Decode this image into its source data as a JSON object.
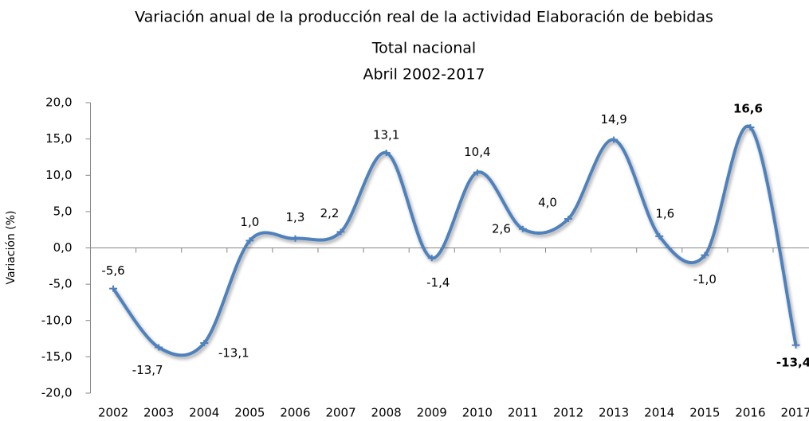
{
  "chart_data": {
    "type": "line",
    "title": "Variación anual de la producción real de la actividad Elaboración de bebidas",
    "subtitle": [
      "Total nacional",
      "Abril 2002-2017"
    ],
    "y_label": "Variación (%)",
    "categories": [
      "2002",
      "2003",
      "2004",
      "2005",
      "2006",
      "2007",
      "2008",
      "2009",
      "2010",
      "2011",
      "2012",
      "2013",
      "2014",
      "2015",
      "2016",
      "2017"
    ],
    "values": [
      -5.6,
      -13.7,
      -13.1,
      1.0,
      1.3,
      2.2,
      13.1,
      -1.4,
      10.4,
      2.6,
      4.0,
      14.9,
      1.6,
      -1.0,
      16.6,
      -13.4
    ],
    "value_labels": [
      "-5,6",
      "-13,7",
      "-13,1",
      "1,0",
      "1,3",
      "2,2",
      "13,1",
      "-1,4",
      "10,4",
      "2,6",
      "4,0",
      "14,9",
      "1,6",
      "-1,0",
      "16,6",
      "-13,4"
    ],
    "color": "#4f81bd",
    "ylim": [
      -20,
      20
    ],
    "yticks": [
      {
        "value": -20,
        "label": "-20,0"
      },
      {
        "value": -15,
        "label": "-15,0"
      },
      {
        "value": -10,
        "label": "-10,0"
      },
      {
        "value": -5,
        "label": "-5,0"
      },
      {
        "value": 0,
        "label": "0,0"
      },
      {
        "value": 5,
        "label": "5,0"
      },
      {
        "value": 10,
        "label": "10,0"
      },
      {
        "value": 15,
        "label": "15,0"
      },
      {
        "value": 20,
        "label": "20,0"
      }
    ],
    "grid": false,
    "smooth": true
  }
}
